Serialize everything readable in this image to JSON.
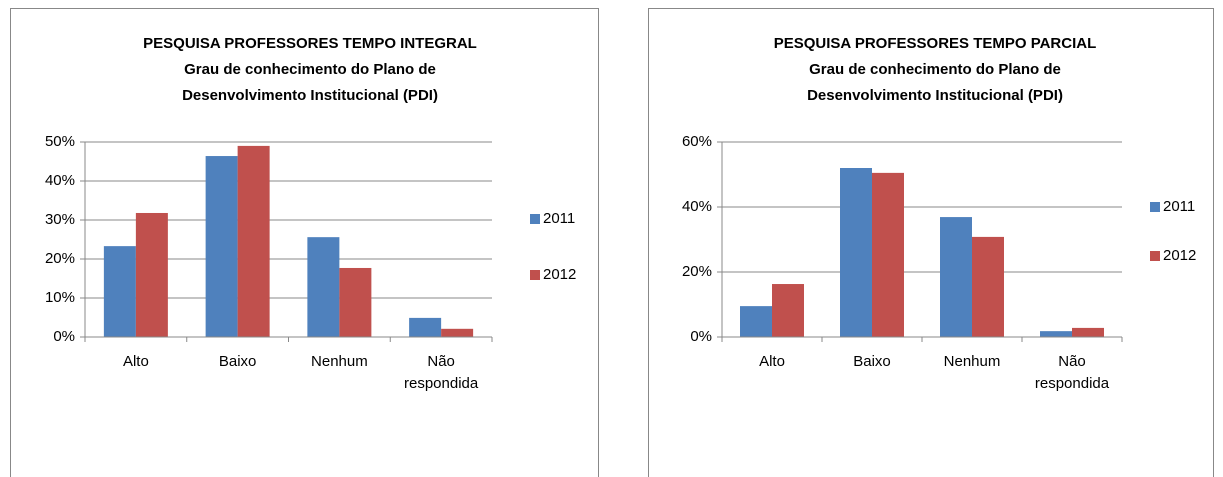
{
  "chart_data": [
    {
      "type": "bar",
      "title": [
        "PESQUISA PROFESSORES TEMPO INTEGRAL",
        "Grau de conhecimento do Plano de",
        "Desenvolvimento Institucional (PDI)"
      ],
      "categories": [
        "Alto",
        "Baixo",
        "Nenhum",
        "Não respondida"
      ],
      "series": [
        {
          "name": "2011",
          "color": "#4f81bd",
          "values": [
            23.3,
            46.4,
            25.6,
            4.9
          ]
        },
        {
          "name": "2012",
          "color": "#c0504d",
          "values": [
            31.8,
            49.0,
            17.7,
            2.1
          ]
        }
      ],
      "ylim": [
        0,
        50
      ],
      "yticks": [
        {
          "value": 0,
          "label": "0%"
        },
        {
          "value": 10,
          "label": "10%"
        },
        {
          "value": 20,
          "label": "20%"
        },
        {
          "value": 30,
          "label": "30%"
        },
        {
          "value": 40,
          "label": "40%"
        },
        {
          "value": 50,
          "label": "50%"
        }
      ],
      "grid": true,
      "legend": "right"
    },
    {
      "type": "bar",
      "title": [
        "PESQUISA PROFESSORES TEMPO PARCIAL",
        "Grau de conhecimento do Plano de",
        "Desenvolvimento Institucional (PDI)"
      ],
      "categories": [
        "Alto",
        "Baixo",
        "Nenhum",
        "Não respondida"
      ],
      "series": [
        {
          "name": "2011",
          "color": "#4f81bd",
          "values": [
            9.5,
            52.0,
            36.9,
            1.8
          ]
        },
        {
          "name": "2012",
          "color": "#c0504d",
          "values": [
            16.3,
            50.5,
            30.8,
            2.8
          ]
        }
      ],
      "ylim": [
        0,
        60
      ],
      "yticks": [
        {
          "value": 0,
          "label": "0%"
        },
        {
          "value": 20,
          "label": "20%"
        },
        {
          "value": 40,
          "label": "40%"
        },
        {
          "value": 60,
          "label": "60%"
        }
      ],
      "grid": true,
      "legend": "right"
    }
  ]
}
